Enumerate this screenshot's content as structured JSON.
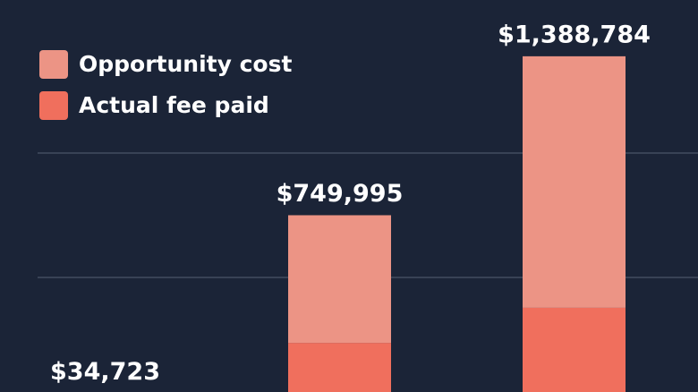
{
  "chart_data": {
    "type": "stacked-bar",
    "categories": [
      null,
      null,
      null
    ],
    "series": [
      {
        "name": "Actual fee paid",
        "color": "#f06f5d",
        "values": [
          10000,
          237000,
          378000
        ]
      },
      {
        "name": "Opportunity cost",
        "color": "#ec9485",
        "values": [
          24723,
          512995,
          1010784
        ]
      }
    ],
    "totals": [
      34723,
      749995,
      1388784
    ],
    "total_labels": [
      "$34,723",
      "$749,995",
      "$1,388,784"
    ],
    "ylim": [
      0,
      1615000
    ],
    "gridlines": [
      500000,
      1000000
    ],
    "legend": "top-left"
  }
}
